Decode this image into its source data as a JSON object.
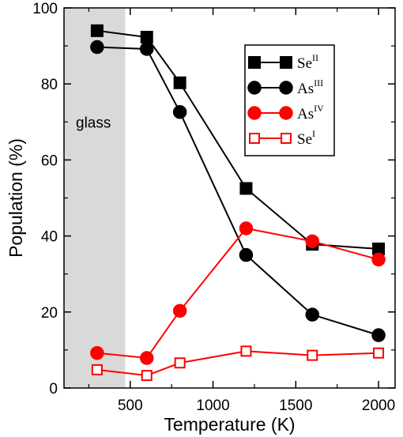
{
  "chart_data": {
    "type": "line",
    "xlabel": "Temperature (K)",
    "ylabel": "Population (%)",
    "xlim": [
      100,
      2100
    ],
    "ylim": [
      0,
      100
    ],
    "x_ticks": [
      500,
      1000,
      1500,
      2000
    ],
    "y_ticks": [
      0,
      20,
      40,
      60,
      80,
      100
    ],
    "shaded_region": {
      "label": "glass",
      "x_range": [
        100,
        470
      ],
      "color": "#d9d9d9"
    },
    "legend_position": "top-right",
    "grid": false,
    "series": [
      {
        "name_base": "Se",
        "name_sup": "II",
        "marker": "square",
        "filled": true,
        "color": "#000000",
        "x": [
          300,
          600,
          800,
          1200,
          1600,
          2000
        ],
        "y": [
          94,
          92.3,
          80.3,
          52.5,
          37.8,
          36.6
        ]
      },
      {
        "name_base": "As",
        "name_sup": "III",
        "marker": "circle",
        "filled": true,
        "color": "#000000",
        "x": [
          300,
          600,
          800,
          1200,
          1600,
          2000
        ],
        "y": [
          89.7,
          89.2,
          72.6,
          35,
          19.3,
          13.9
        ]
      },
      {
        "name_base": "As",
        "name_sup": "IV",
        "marker": "circle",
        "filled": true,
        "color": "#ff0000",
        "x": [
          300,
          600,
          800,
          1200,
          1600,
          2000
        ],
        "y": [
          9.2,
          7.9,
          20.3,
          42,
          38.6,
          33.8
        ]
      },
      {
        "name_base": "Se",
        "name_sup": "I",
        "marker": "square",
        "filled": false,
        "color": "#ff0000",
        "x": [
          300,
          600,
          800,
          1200,
          1600,
          2000
        ],
        "y": [
          4.8,
          3.3,
          6.6,
          9.7,
          8.6,
          9.2
        ]
      }
    ]
  }
}
